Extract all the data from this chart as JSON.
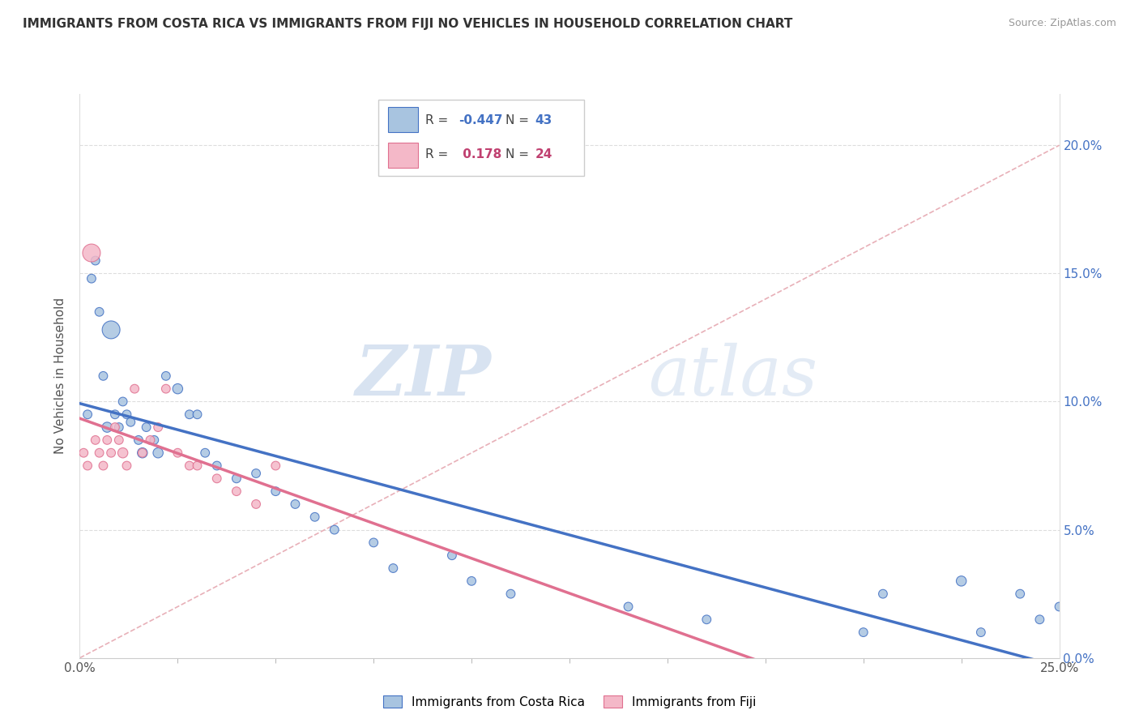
{
  "title": "IMMIGRANTS FROM COSTA RICA VS IMMIGRANTS FROM FIJI NO VEHICLES IN HOUSEHOLD CORRELATION CHART",
  "source": "Source: ZipAtlas.com",
  "ylabel": "No Vehicles in Household",
  "xmin": 0.0,
  "xmax": 25.0,
  "ymin": 0.0,
  "ymax": 22.0,
  "color_blue": "#a8c4e0",
  "color_pink": "#f4b8c8",
  "color_blue_line": "#4472c4",
  "color_pink_line": "#e07090",
  "color_diag": "#e8b0b8",
  "watermark_zip": "ZIP",
  "watermark_atlas": "atlas",
  "costa_rica_x": [
    0.2,
    0.3,
    0.4,
    0.5,
    0.6,
    0.7,
    0.8,
    0.9,
    1.0,
    1.1,
    1.2,
    1.3,
    1.5,
    1.6,
    1.7,
    1.9,
    2.0,
    2.2,
    2.5,
    2.8,
    3.0,
    3.2,
    3.5,
    4.0,
    4.5,
    5.0,
    5.5,
    6.0,
    6.5,
    7.5,
    8.0,
    9.5,
    10.0,
    11.0,
    14.0,
    16.0,
    20.0,
    23.0,
    24.0,
    24.5,
    25.0,
    20.5,
    22.5
  ],
  "costa_rica_y": [
    9.5,
    14.8,
    15.5,
    13.5,
    11.0,
    9.0,
    12.8,
    9.5,
    9.0,
    10.0,
    9.5,
    9.2,
    8.5,
    8.0,
    9.0,
    8.5,
    8.0,
    11.0,
    10.5,
    9.5,
    9.5,
    8.0,
    7.5,
    7.0,
    7.2,
    6.5,
    6.0,
    5.5,
    5.0,
    4.5,
    3.5,
    4.0,
    3.0,
    2.5,
    2.0,
    1.5,
    1.0,
    1.0,
    2.5,
    1.5,
    2.0,
    2.5,
    3.0
  ],
  "costa_rica_size": [
    60,
    60,
    60,
    60,
    60,
    80,
    250,
    60,
    60,
    60,
    60,
    60,
    60,
    80,
    60,
    60,
    80,
    60,
    80,
    60,
    60,
    60,
    60,
    60,
    60,
    60,
    60,
    60,
    60,
    60,
    60,
    60,
    60,
    60,
    60,
    60,
    60,
    60,
    60,
    60,
    60,
    60,
    80
  ],
  "fiji_x": [
    0.1,
    0.2,
    0.3,
    0.4,
    0.5,
    0.6,
    0.7,
    0.8,
    0.9,
    1.0,
    1.1,
    1.2,
    1.4,
    1.6,
    1.8,
    2.0,
    2.2,
    2.5,
    2.8,
    3.0,
    3.5,
    4.0,
    4.5,
    5.0
  ],
  "fiji_y": [
    8.0,
    7.5,
    15.8,
    8.5,
    8.0,
    7.5,
    8.5,
    8.0,
    9.0,
    8.5,
    8.0,
    7.5,
    10.5,
    8.0,
    8.5,
    9.0,
    10.5,
    8.0,
    7.5,
    7.5,
    7.0,
    6.5,
    6.0,
    7.5
  ],
  "fiji_size": [
    60,
    60,
    250,
    60,
    60,
    60,
    60,
    60,
    60,
    60,
    80,
    60,
    60,
    60,
    60,
    60,
    60,
    60,
    60,
    60,
    60,
    60,
    60,
    60
  ]
}
